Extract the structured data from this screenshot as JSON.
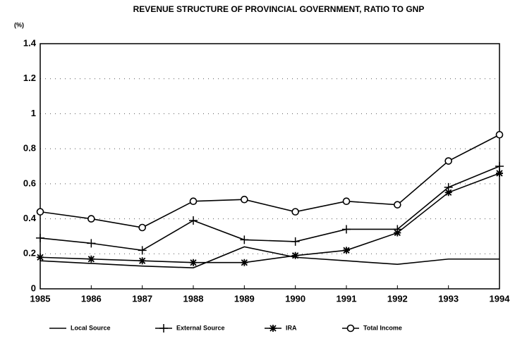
{
  "chart_data": {
    "type": "line",
    "title": "REVENUE STRUCTURE OF PROVINCIAL GOVERNMENT, RATIO TO GNP",
    "ylabel": "(%)",
    "categories": [
      "1985",
      "1986",
      "1987",
      "1988",
      "1989",
      "1990",
      "1991",
      "1992",
      "1993",
      "1994"
    ],
    "series": [
      {
        "name": "Local Source",
        "color": "#000000",
        "marker": "none",
        "values": [
          0.16,
          0.145,
          0.13,
          0.12,
          0.24,
          0.18,
          0.16,
          0.14,
          0.17,
          0.17
        ]
      },
      {
        "name": "External Source",
        "color": "#000000",
        "marker": "plus",
        "values": [
          0.29,
          0.26,
          0.22,
          0.39,
          0.28,
          0.27,
          0.34,
          0.34,
          0.58,
          0.7
        ]
      },
      {
        "name": "IRA",
        "color": "#000000",
        "marker": "star",
        "values": [
          0.18,
          0.17,
          0.16,
          0.15,
          0.15,
          0.19,
          0.22,
          0.32,
          0.55,
          0.66
        ]
      },
      {
        "name": "Total Income",
        "color": "#000000",
        "marker": "circle",
        "values": [
          0.44,
          0.4,
          0.35,
          0.5,
          0.51,
          0.44,
          0.5,
          0.48,
          0.73,
          0.88
        ]
      }
    ],
    "ylim": [
      0,
      1.4
    ],
    "yticks": [
      0,
      0.2,
      0.4,
      0.6,
      0.8,
      1,
      1.2,
      1.4
    ],
    "grid": true,
    "legend": "bottom"
  }
}
